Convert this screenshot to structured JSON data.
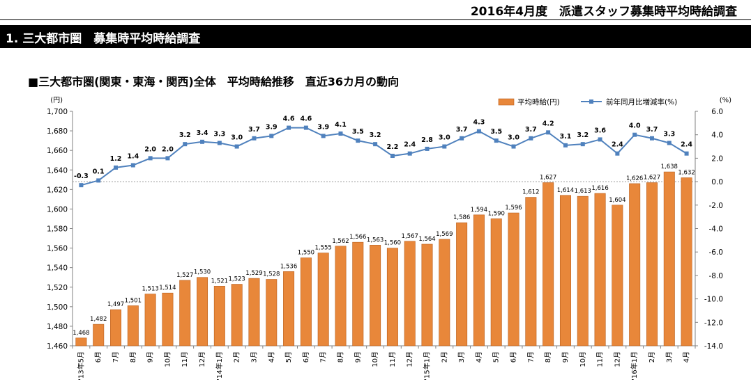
{
  "header": {
    "report_title": "2016年4月度　派遣スタッフ募集時平均時給調査",
    "section_title": "1. 三大都市圏　募集時平均時給調査"
  },
  "chart_data": {
    "type": "bar",
    "title": "■三大都市圏(関東・東海・関西)全体　平均時給推移　直近36カ月の動向",
    "categories": [
      "'13年5月",
      "6月",
      "7月",
      "8月",
      "9月",
      "10月",
      "11月",
      "12月",
      "'14年1月",
      "2月",
      "3月",
      "4月",
      "5月",
      "6月",
      "7月",
      "8月",
      "9月",
      "10月",
      "11月",
      "12月",
      "'15年1月",
      "2月",
      "3月",
      "4月",
      "5月",
      "6月",
      "7月",
      "8月",
      "9月",
      "10月",
      "11月",
      "12月",
      "'16年1月",
      "2月",
      "3月",
      "4月"
    ],
    "left_unit": "(円)",
    "right_unit": "(%)",
    "ylim": [
      1460,
      1700
    ],
    "y2lim": [
      -14.0,
      6.0
    ],
    "left_ticks": [
      "1,460",
      "1,480",
      "1,500",
      "1,520",
      "1,540",
      "1,560",
      "1,580",
      "1,600",
      "1,620",
      "1,640",
      "1,660",
      "1,680",
      "1,700"
    ],
    "right_ticks": [
      "-14.0",
      "-12.0",
      "-10.0",
      "-8.0",
      "-6.0",
      "-4.0",
      "-2.0",
      "0.0",
      "2.0",
      "4.0",
      "6.0"
    ],
    "legend_position": "top-right",
    "grid": false,
    "series": [
      {
        "name": "平均時給(円)",
        "type": "bar",
        "axis": "left",
        "color": "#E8873A",
        "values": [
          1468,
          1482,
          1497,
          1501,
          1513,
          1514,
          1527,
          1530,
          1521,
          1523,
          1529,
          1528,
          1536,
          1550,
          1555,
          1562,
          1566,
          1563,
          1560,
          1567,
          1564,
          1569,
          1586,
          1594,
          1590,
          1596,
          1612,
          1627,
          1614,
          1613,
          1616,
          1604,
          1626,
          1627,
          1638,
          1632
        ],
        "labels": [
          "1,468",
          "1,482",
          "1,497",
          "1,501",
          "1,513",
          "1,514",
          "1,527",
          "1,530",
          "1,521",
          "1,523",
          "1,529",
          "1,528",
          "1,536",
          "1,550",
          "1,555",
          "1,562",
          "1,566",
          "1,563",
          "1,560",
          "1,567",
          "1,564",
          "1,569",
          "1,586",
          "1,594",
          "1,590",
          "1,596",
          "1,612",
          "1,627",
          "1,614",
          "1,613",
          "1,616",
          "1,604",
          "1,626",
          "1,627",
          "1,638",
          "1,632"
        ]
      },
      {
        "name": "前年同月比増減率(%)",
        "type": "line",
        "axis": "right",
        "color": "#4F81BD",
        "values": [
          -0.3,
          0.1,
          1.2,
          1.4,
          2.0,
          2.0,
          3.2,
          3.4,
          3.3,
          3.0,
          3.7,
          3.9,
          4.6,
          4.6,
          3.9,
          4.1,
          3.5,
          3.2,
          2.2,
          2.4,
          2.8,
          3.0,
          3.7,
          4.3,
          3.5,
          3.0,
          3.7,
          4.2,
          3.1,
          3.2,
          3.6,
          2.4,
          4.0,
          3.7,
          3.3,
          2.4
        ],
        "labels": [
          "-0.3",
          "0.1",
          "1.2",
          "1.4",
          "2.0",
          "2.0",
          "3.2",
          "3.4",
          "3.3",
          "3.0",
          "3.7",
          "3.9",
          "4.6",
          "4.6",
          "3.9",
          "4.1",
          "3.5",
          "3.2",
          "2.2",
          "2.4",
          "2.8",
          "3.0",
          "3.7",
          "4.3",
          "3.5",
          "3.0",
          "3.7",
          "4.2",
          "3.1",
          "3.2",
          "3.6",
          "2.4",
          "4.0",
          "3.7",
          "3.3",
          "2.4"
        ]
      }
    ]
  }
}
